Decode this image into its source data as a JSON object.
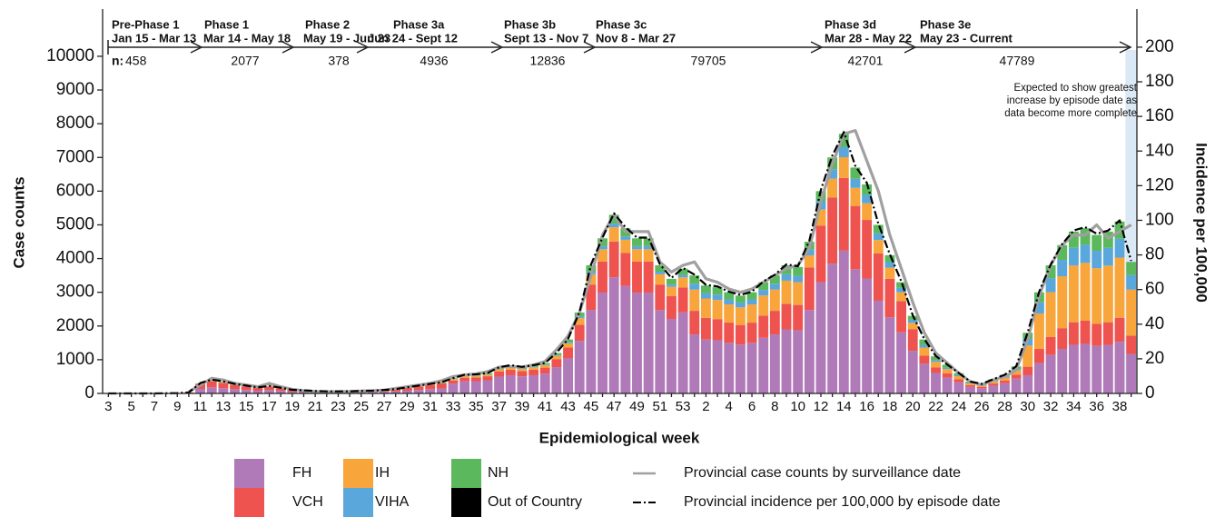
{
  "chart_data": {
    "type": "bar",
    "y_label": "Case counts",
    "y2_label": "Incidence per 100,000",
    "x_label": "Epidemiological week",
    "n_prefix": "n:",
    "phases": [
      {
        "name": "Pre-Phase 1",
        "dates": "Jan 15 - Mar 13",
        "n": 458
      },
      {
        "name": "Phase 1",
        "dates": "Mar 14 - May 18",
        "n": 2077
      },
      {
        "name": "Phase 2",
        "dates": "May 19 - Jun 23",
        "n": 378
      },
      {
        "name": "Phase 3a",
        "dates": "Jun 24 - Sept 12",
        "n": 4936
      },
      {
        "name": "Phase 3b",
        "dates": "Sept 13 - Nov 7",
        "n": 12836
      },
      {
        "name": "Phase 3c",
        "dates": "Nov 8 - Mar 27",
        "n": 79705
      },
      {
        "name": "Phase 3d",
        "dates": "Mar 28 - May 22",
        "n": 42701
      },
      {
        "name": "Phase 3e",
        "dates": "May 23 - Current",
        "n": 47789
      }
    ],
    "annotation": [
      "Expected to show greatest",
      "increase by episode date as",
      "data become more complete"
    ],
    "categories": [
      "3",
      null,
      "5",
      null,
      "7",
      null,
      "9",
      null,
      "11",
      null,
      "13",
      null,
      "15",
      null,
      "17",
      null,
      "19",
      null,
      "21",
      null,
      "23",
      null,
      "25",
      null,
      "27",
      null,
      "29",
      null,
      "31",
      null,
      "33",
      null,
      "35",
      null,
      "37",
      null,
      "39",
      null,
      "41",
      null,
      "43",
      null,
      "45",
      null,
      "47",
      null,
      "49",
      null,
      "51",
      null,
      "53",
      null,
      "2",
      null,
      "4",
      null,
      "6",
      null,
      "8",
      null,
      "10",
      null,
      "12",
      null,
      "14",
      null,
      "16",
      null,
      "18",
      null,
      "20",
      null,
      "22",
      null,
      "24",
      null,
      "26",
      null,
      "28",
      null,
      "30",
      null,
      "32",
      null,
      "34",
      null,
      "36",
      null,
      "38",
      null
    ],
    "ylim": [
      0,
      11400
    ],
    "yticks": [
      0,
      1000,
      2000,
      3000,
      4000,
      5000,
      6000,
      7000,
      8000,
      9000,
      10000
    ],
    "y2lim": [
      0,
      222
    ],
    "y2ticks": [
      0,
      20,
      40,
      60,
      80,
      100,
      120,
      140,
      160,
      180,
      200
    ],
    "legend": "bottom",
    "series": [
      {
        "name": "FH",
        "color": "#b07ab8",
        "values": [
          0,
          0,
          0,
          0,
          0,
          2,
          4,
          12,
          135,
          180,
          155,
          126,
          104,
          81,
          99,
          77,
          50,
          40,
          32,
          27,
          27,
          27,
          32,
          36,
          45,
          59,
          81,
          104,
          126,
          149,
          293,
          358,
          364,
          390,
          500,
          540,
          507,
          540,
          585,
          780,
          1040,
          1560,
          2470,
          2990,
          3445,
          3185,
          2990,
          2990,
          2470,
          2210,
          2405,
          1750,
          1600,
          1575,
          1500,
          1450,
          1500,
          1650,
          1750,
          1900,
          1875,
          2475,
          3300,
          3850,
          4235,
          3685,
          3410,
          2750,
          2255,
          1815,
          1265,
          880,
          605,
          468,
          330,
          193,
          154,
          231,
          303,
          440,
          540,
          900,
          1140,
          1320,
          1440,
          1470,
          1410,
          1440,
          1530,
          1170
        ]
      },
      {
        "name": "VCH",
        "color": "#ef5350",
        "values": [
          0,
          0,
          0,
          0,
          0,
          3,
          6,
          18,
          135,
          180,
          160,
          126,
          103,
          81,
          99,
          76,
          49,
          41,
          31,
          27,
          27,
          27,
          31,
          36,
          45,
          58,
          81,
          103,
          126,
          148,
          90,
          110,
          112,
          120,
          154,
          166,
          156,
          166,
          180,
          240,
          320,
          480,
          760,
          920,
          1060,
          980,
          920,
          920,
          760,
          680,
          740,
          700,
          640,
          630,
          600,
          580,
          600,
          660,
          700,
          760,
          750,
          1260,
          1680,
          1960,
          2156,
          1876,
          1736,
          1400,
          1148,
          924,
          644,
          240,
          165,
          128,
          90,
          52,
          42,
          63,
          82,
          120,
          252,
          420,
          532,
          616,
          672,
          686,
          658,
          672,
          714,
          546
        ]
      },
      {
        "name": "IH",
        "color": "#f8a53c",
        "values": [
          0,
          0,
          0,
          0,
          0,
          0,
          0,
          0,
          15,
          20,
          18,
          14,
          12,
          9,
          11,
          9,
          6,
          4,
          4,
          3,
          3,
          3,
          4,
          4,
          5,
          7,
          9,
          12,
          14,
          17,
          36,
          44,
          45,
          48,
          62,
          66,
          62,
          66,
          72,
          96,
          128,
          192,
          304,
          368,
          424,
          392,
          368,
          368,
          304,
          272,
          296,
          630,
          576,
          567,
          540,
          522,
          540,
          594,
          630,
          684,
          675,
          360,
          480,
          560,
          616,
          536,
          496,
          400,
          328,
          264,
          184,
          240,
          165,
          127,
          90,
          52,
          42,
          63,
          82,
          120,
          630,
          1050,
          1330,
          1540,
          1680,
          1715,
          1645,
          1680,
          1785,
          1365
        ]
      },
      {
        "name": "VIHA",
        "color": "#5aa7dc",
        "values": [
          0,
          0,
          0,
          0,
          0,
          0,
          0,
          0,
          0,
          0,
          0,
          0,
          0,
          0,
          0,
          0,
          0,
          0,
          0,
          0,
          0,
          0,
          0,
          0,
          0,
          0,
          0,
          0,
          0,
          0,
          9,
          11,
          11,
          12,
          15,
          17,
          16,
          17,
          18,
          24,
          32,
          48,
          76,
          92,
          106,
          98,
          92,
          92,
          76,
          68,
          74,
          175,
          160,
          158,
          150,
          145,
          150,
          165,
          175,
          190,
          188,
          180,
          240,
          280,
          308,
          268,
          248,
          200,
          164,
          132,
          92,
          80,
          55,
          42,
          30,
          18,
          14,
          21,
          28,
          40,
          198,
          330,
          418,
          484,
          528,
          539,
          517,
          528,
          561,
          429
        ]
      },
      {
        "name": "NH",
        "color": "#5cb85c",
        "values": [
          0,
          0,
          0,
          0,
          0,
          0,
          0,
          0,
          15,
          20,
          17,
          14,
          11,
          9,
          11,
          8,
          5,
          5,
          3,
          3,
          3,
          3,
          3,
          4,
          5,
          6,
          9,
          11,
          14,
          16,
          22,
          27,
          28,
          30,
          39,
          41,
          39,
          41,
          45,
          60,
          80,
          120,
          190,
          230,
          265,
          245,
          230,
          230,
          190,
          170,
          185,
          245,
          224,
          220,
          210,
          203,
          210,
          231,
          245,
          266,
          262,
          225,
          300,
          350,
          385,
          335,
          310,
          250,
          205,
          165,
          115,
          160,
          110,
          85,
          60,
          35,
          28,
          42,
          55,
          80,
          180,
          300,
          380,
          440,
          480,
          490,
          470,
          480,
          510,
          390
        ]
      },
      {
        "name": "Out of Country",
        "color": "#000000",
        "values": [
          0,
          0,
          0,
          0,
          0,
          0,
          0,
          0,
          0,
          0,
          0,
          0,
          0,
          0,
          0,
          0,
          0,
          0,
          0,
          0,
          0,
          0,
          0,
          0,
          0,
          0,
          0,
          0,
          0,
          0,
          0,
          0,
          0,
          0,
          0,
          0,
          0,
          0,
          0,
          0,
          0,
          0,
          0,
          0,
          0,
          0,
          0,
          0,
          0,
          0,
          0,
          0,
          0,
          0,
          0,
          0,
          0,
          0,
          0,
          0,
          0,
          0,
          0,
          0,
          0,
          0,
          0,
          0,
          0,
          0,
          0,
          0,
          0,
          0,
          0,
          0,
          0,
          0,
          0,
          0,
          0,
          0,
          0,
          0,
          0,
          0,
          0,
          0,
          0,
          0
        ]
      },
      {
        "name": "Provincial case counts by surveillance date",
        "type": "line",
        "color": "#a0a0a0",
        "values": [
          null,
          null,
          null,
          null,
          null,
          null,
          null,
          50,
          250,
          450,
          400,
          300,
          250,
          200,
          300,
          200,
          120,
          80,
          60,
          50,
          50,
          60,
          70,
          80,
          100,
          150,
          200,
          250,
          300,
          380,
          500,
          550,
          580,
          650,
          780,
          800,
          780,
          850,
          950,
          1300,
          1700,
          2400,
          3500,
          4700,
          5300,
          4800,
          4800,
          4800,
          3900,
          3600,
          3800,
          3900,
          3400,
          3300,
          3100,
          3000,
          3100,
          3300,
          3500,
          3700,
          3800,
          4300,
          5700,
          6800,
          7700,
          7800,
          6900,
          6000,
          4700,
          3700,
          2700,
          1800,
          1200,
          900,
          600,
          350,
          250,
          400,
          500,
          700,
          1600,
          2900,
          3800,
          4400,
          4700,
          4700,
          5000,
          4600,
          4800,
          5000
        ]
      },
      {
        "name": "Provincial incidence per 100,000 by episode date",
        "type": "line",
        "axis": "y2",
        "dash": "dashdot",
        "color": "#000000",
        "values": [
          0,
          0,
          0,
          0,
          0,
          0.1,
          0.2,
          0.6,
          6,
          8,
          7,
          5.5,
          4.5,
          3.5,
          4.3,
          3.3,
          2.1,
          1.8,
          1.4,
          1.2,
          1.2,
          1.2,
          1.4,
          1.6,
          2,
          2.5,
          3.5,
          4.5,
          5.5,
          6.5,
          8.8,
          10.8,
          11,
          11.8,
          15.1,
          16.3,
          15.3,
          16.3,
          17.6,
          23.5,
          31.4,
          47,
          74.5,
          90,
          104,
          96,
          90,
          90,
          74.5,
          66.7,
          72.5,
          68.6,
          62.7,
          61.8,
          58.8,
          56.9,
          58.8,
          64.7,
          68.6,
          74.5,
          73.5,
          88.2,
          117.6,
          137.3,
          151,
          131.4,
          121.6,
          98,
          80.4,
          64.7,
          45.1,
          31.4,
          21.6,
          16.7,
          11.8,
          6.9,
          5.5,
          8.2,
          10.8,
          15.7,
          35.3,
          58.8,
          74.5,
          86.3,
          94.1,
          96.1,
          92.2,
          94.1,
          100,
          76.5
        ]
      }
    ]
  }
}
